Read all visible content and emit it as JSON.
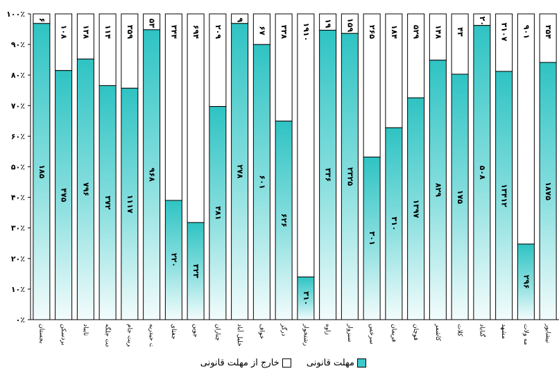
{
  "chart_data": {
    "type": "bar",
    "stacked": "percent",
    "title": "",
    "xlabel": "",
    "ylabel": "",
    "ylim": [
      0,
      100
    ],
    "yticks": [
      "۰٪",
      "۱۰٪",
      "۲۰٪",
      "۳۰٪",
      "۴۰٪",
      "۵۰٪",
      "۶۰٪",
      "۷۰٪",
      "۸۰٪",
      "۹۰٪",
      "۱۰۰٪"
    ],
    "grid": false,
    "legend_position": "bottom",
    "categories": [
      "بجستان",
      "بردسکن",
      "تایباد",
      "تحت جلگه",
      "تربت جام",
      "تربت حیدریه",
      "جغتای",
      "جوین",
      "چناران",
      "خلیل آباد",
      "خواف",
      "درگز",
      "رشتخوار",
      "زاوه",
      "سبزوار",
      "سرخس",
      "فریمان",
      "قوچان",
      "کاشمر",
      "کلات",
      "گناباد",
      "مشهد",
      "مه ولات",
      "نیشابور"
    ],
    "series": [
      {
        "name": "مهلت قانونی",
        "color": "#3dc9c9",
        "values": [
          185,
          475,
          796,
          372,
          1117,
          968,
          220,
          323,
          481,
          278,
          601,
          626,
          310,
          336,
          2325,
          301,
          310,
          1397,
          829,
          175,
          508,
          13412,
          296,
          1875
        ],
        "labels": [
          "۱۸۵",
          "۴۷۵",
          "۷۹۶",
          "۳۷۲",
          "۱۱۱۷",
          "۹۶۸",
          "۲۲۰",
          "۳۲۳",
          "۴۸۱",
          "۲۷۸",
          "۶۰۱",
          "۶۲۶",
          "۳۱۰",
          "۳۳۶",
          "۲۳۲۵",
          "۳۰۱",
          "۳۱۰",
          "۱۳۹۷",
          "۸۲۹",
          "۱۷۵",
          "۵۰۸",
          "۱۳۴۱۲",
          "۲۹۶",
          "۱۸۷۵"
        ]
      },
      {
        "name": "خارج از مهلت قانونی",
        "color": "#ffffff",
        "values": [
          6,
          108,
          138,
          114,
          359,
          53,
          344,
          694,
          209,
          9,
          67,
          338,
          1910,
          19,
          159,
          265,
          184,
          529,
          148,
          43,
          20,
          3107,
          901,
          354
        ],
        "labels": [
          "۶",
          "۱۰۸",
          "۱۳۸",
          "۱۱۴",
          "۳۵۹",
          "۵۳",
          "۳۴۴",
          "۶۹۴",
          "۲۰۹",
          "۹",
          "۶۷",
          "۳۳۸",
          "۱۹۱۰",
          "۱۹",
          "۱۵۹",
          "۲۶۵",
          "۱۸۴",
          "۵۲۹",
          "۱۴۸",
          "۴۳",
          "۲۰",
          "۳۱۰۷",
          "۹۰۱",
          "۳۵۴"
        ]
      }
    ]
  }
}
